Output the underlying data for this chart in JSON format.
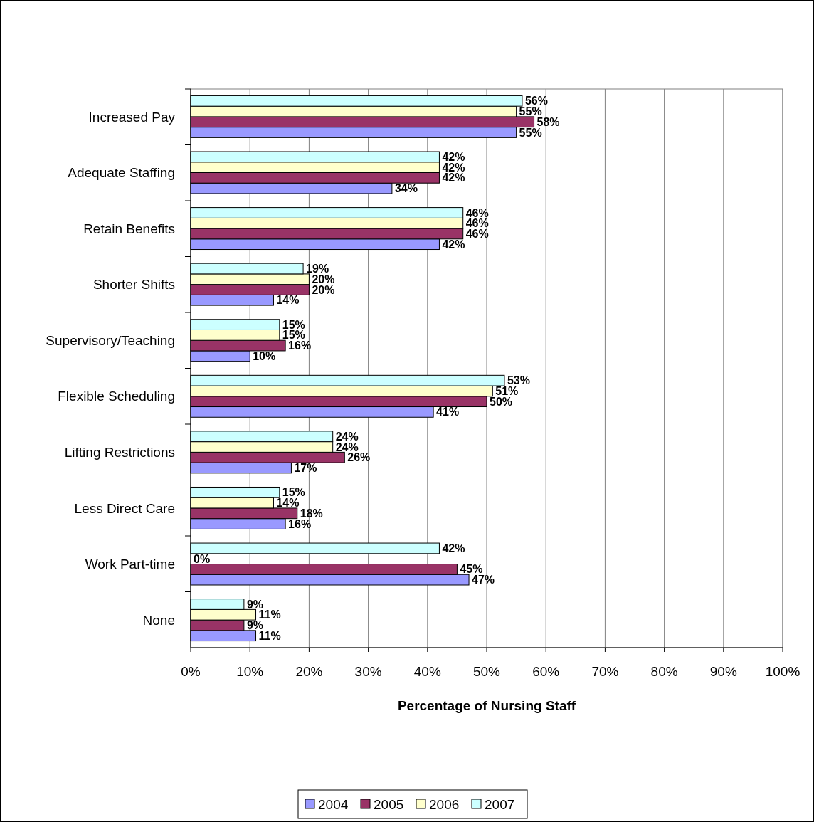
{
  "chart_data": {
    "type": "bar",
    "orientation": "horizontal",
    "xlabel": "Percentage of Nursing Staff",
    "categories": [
      "Increased Pay",
      "Adequate Staffing",
      "Retain Benefits",
      "Shorter Shifts",
      "Supervisory/Teaching",
      "Flexible Scheduling",
      "Lifting Restrictions",
      "Less Direct Care",
      "Work Part-time",
      "None"
    ],
    "series": [
      {
        "name": "2004",
        "color": "#9999ff",
        "values": [
          55,
          34,
          42,
          14,
          10,
          41,
          17,
          16,
          47,
          11
        ],
        "value_labels": [
          "55%",
          "34%",
          "42%",
          "14%",
          "10%",
          "41%",
          "17%",
          "16%",
          "47%",
          "11%"
        ]
      },
      {
        "name": "2005",
        "color": "#993366",
        "values": [
          58,
          42,
          46,
          20,
          16,
          50,
          26,
          18,
          45,
          9
        ],
        "value_labels": [
          "58%",
          "42%",
          "46%",
          "20%",
          "16%",
          "50%",
          "26%",
          "18%",
          "45%",
          "9%"
        ]
      },
      {
        "name": "2006",
        "color": "#ffffcc",
        "values": [
          55,
          42,
          46,
          20,
          15,
          51,
          24,
          14,
          0,
          11
        ],
        "value_labels": [
          "55%",
          "42%",
          "46%",
          "20%",
          "15%",
          "51%",
          "24%",
          "14%",
          "0%",
          "11%"
        ]
      },
      {
        "name": "2007",
        "color": "#ccffff",
        "values": [
          56,
          42,
          46,
          19,
          15,
          53,
          24,
          15,
          42,
          9
        ],
        "value_labels": [
          "56%",
          "42%",
          "46%",
          "19%",
          "15%",
          "53%",
          "24%",
          "15%",
          "42%",
          "9%"
        ]
      }
    ],
    "xlim": [
      0,
      100
    ],
    "xticks": [
      {
        "value": 0,
        "label": "0%"
      },
      {
        "value": 10,
        "label": "10%"
      },
      {
        "value": 20,
        "label": "20%"
      },
      {
        "value": 30,
        "label": "30%"
      },
      {
        "value": 40,
        "label": "40%"
      },
      {
        "value": 50,
        "label": "50%"
      },
      {
        "value": 60,
        "label": "60%"
      },
      {
        "value": 70,
        "label": "70%"
      },
      {
        "value": 80,
        "label": "80%"
      },
      {
        "value": 90,
        "label": "90%"
      },
      {
        "value": 100,
        "label": "100%"
      }
    ],
    "grid": "x",
    "legend": "bottom"
  }
}
